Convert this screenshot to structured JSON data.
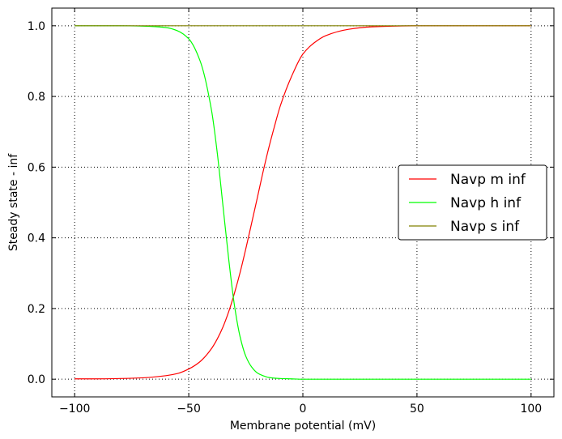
{
  "chart_data": {
    "type": "line",
    "title": "",
    "xlabel": "Membrane potential (mV)",
    "ylabel": "Steady state - inf",
    "xlim": [
      -110,
      110
    ],
    "ylim": [
      -0.05,
      1.05
    ],
    "xticks": [
      -100,
      -50,
      0,
      50,
      100
    ],
    "xtick_labels": [
      "−100",
      "−50",
      "0",
      "50",
      "100"
    ],
    "yticks": [
      0.0,
      0.2,
      0.4,
      0.6,
      0.8,
      1.0
    ],
    "ytick_labels": [
      "0.0",
      "0.2",
      "0.4",
      "0.6",
      "0.8",
      "1.0"
    ],
    "grid": true,
    "legend_position": "center-right",
    "x": [
      -100,
      -90,
      -80,
      -70,
      -60,
      -55,
      -50,
      -45,
      -40,
      -37.5,
      -35,
      -32.5,
      -30,
      -27.5,
      -25,
      -22.5,
      -20,
      -17.5,
      -15,
      -12.5,
      -10,
      -5,
      0,
      5,
      10,
      20,
      30,
      50,
      70,
      100
    ],
    "series": [
      {
        "name": "Navp m inf",
        "color": "#ff0000",
        "values": [
          0.001,
          0.001,
          0.002,
          0.004,
          0.01,
          0.016,
          0.029,
          0.05,
          0.087,
          0.114,
          0.148,
          0.191,
          0.243,
          0.302,
          0.369,
          0.44,
          0.512,
          0.585,
          0.653,
          0.714,
          0.771,
          0.856,
          0.92,
          0.952,
          0.972,
          0.99,
          0.997,
          1.0,
          1.0,
          1.0
        ]
      },
      {
        "name": "Navp h inf",
        "color": "#00ff00",
        "values": [
          1.0,
          1.0,
          1.0,
          0.999,
          0.995,
          0.986,
          0.963,
          0.9,
          0.76,
          0.64,
          0.49,
          0.34,
          0.21,
          0.12,
          0.065,
          0.035,
          0.018,
          0.01,
          0.005,
          0.003,
          0.002,
          0.001,
          0.0,
          0.0,
          0.0,
          0.0,
          0.0,
          0.0,
          0.0,
          0.0
        ]
      },
      {
        "name": "Navp s inf",
        "color": "#808000",
        "values": [
          1.0,
          1.0,
          1.0,
          1.0,
          1.0,
          1.0,
          1.0,
          1.0,
          1.0,
          1.0,
          1.0,
          1.0,
          1.0,
          1.0,
          1.0,
          1.0,
          1.0,
          1.0,
          1.0,
          1.0,
          1.0,
          1.0,
          1.0,
          1.0,
          1.0,
          1.0,
          1.0,
          1.0,
          1.0,
          1.0
        ]
      }
    ]
  }
}
